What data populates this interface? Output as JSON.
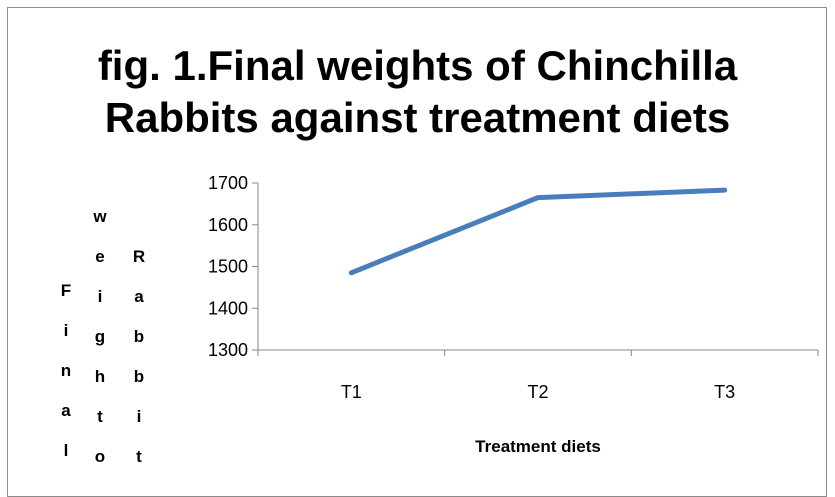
{
  "chart_data": {
    "type": "line",
    "title_lines": [
      "fig. 1.Final weights of Chinchilla",
      "Rabbits against treatment diets"
    ],
    "categories": [
      "T1",
      "T2",
      "T3"
    ],
    "series": [
      {
        "values": [
          1485,
          1665,
          1683
        ],
        "color": "#4a7ebb"
      }
    ],
    "ylim": [
      1300,
      1700
    ],
    "yticks": [
      1300,
      1400,
      1500,
      1600,
      1700
    ],
    "xlabel": "Treatment diets",
    "ylabel_columns": [
      "Final",
      "weight o",
      "Rabbits"
    ],
    "grid": false,
    "legend": "none"
  }
}
